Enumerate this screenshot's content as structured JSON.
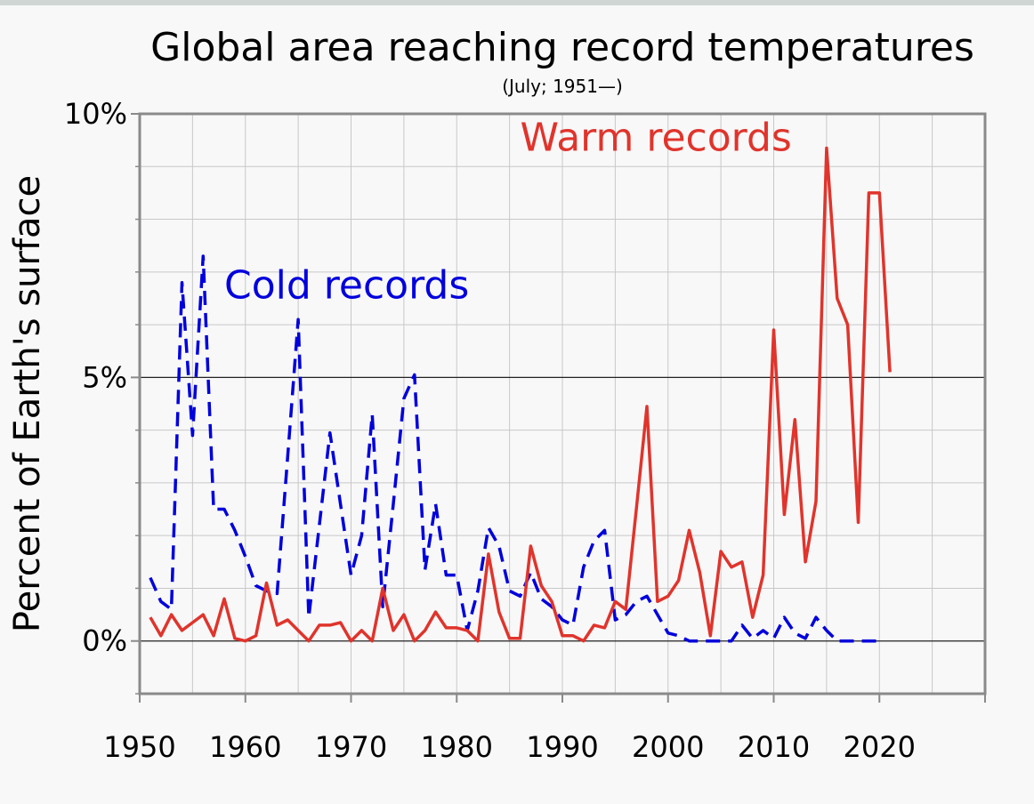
{
  "chart_data": {
    "type": "line",
    "title": "Global area reaching record temperatures",
    "subtitle": "(July; 1951—)",
    "ylabel": "Percent of Earth's surface",
    "xlabel": "",
    "xlim": [
      1950,
      2030
    ],
    "ylim": [
      -1,
      10
    ],
    "x_ticks": [
      1950,
      1960,
      1970,
      1980,
      1990,
      2000,
      2010,
      2020
    ],
    "x_tick_labels": [
      "1950",
      "1960",
      "1970",
      "1980",
      "1990",
      "2000",
      "2010",
      "2020"
    ],
    "y_ticks": [
      0,
      5,
      10
    ],
    "y_tick_labels": [
      "0%",
      "5%",
      "10%"
    ],
    "grid": true,
    "series": [
      {
        "name": "Cold records",
        "color": "#0000dd",
        "style": "dashed",
        "x": [
          1951,
          1952,
          1953,
          1954,
          1955,
          1956,
          1957,
          1958,
          1959,
          1960,
          1961,
          1962,
          1963,
          1964,
          1965,
          1966,
          1967,
          1968,
          1969,
          1970,
          1971,
          1972,
          1973,
          1974,
          1975,
          1976,
          1977,
          1978,
          1979,
          1980,
          1981,
          1982,
          1983,
          1984,
          1985,
          1986,
          1987,
          1988,
          1989,
          1990,
          1991,
          1992,
          1993,
          1994,
          1995,
          1996,
          1997,
          1998,
          1999,
          2000,
          2001,
          2002,
          2003,
          2004,
          2005,
          2006,
          2007,
          2008,
          2009,
          2010,
          2011,
          2012,
          2013,
          2014,
          2015,
          2016,
          2017,
          2018,
          2019,
          2020
        ],
        "values": [
          1.2,
          0.75,
          0.6,
          6.8,
          3.9,
          7.3,
          2.5,
          2.5,
          2.1,
          1.6,
          1.05,
          0.95,
          0.9,
          3.5,
          6.1,
          0.45,
          2.2,
          3.95,
          2.6,
          1.25,
          2.0,
          4.3,
          0.65,
          2.6,
          4.6,
          5.05,
          1.35,
          2.6,
          1.25,
          1.25,
          0.2,
          0.95,
          2.15,
          1.8,
          0.95,
          0.85,
          1.3,
          0.8,
          0.65,
          0.4,
          0.3,
          1.4,
          1.9,
          2.1,
          0.4,
          0.5,
          0.75,
          0.85,
          0.5,
          0.15,
          0.1,
          0.0,
          0.0,
          0.0,
          0.0,
          0.0,
          0.3,
          0.05,
          0.2,
          0.05,
          0.45,
          0.15,
          0.05,
          0.45,
          0.2,
          0.0,
          0.0,
          0.0,
          0.0,
          0.0
        ]
      },
      {
        "name": "Warm records",
        "color": "#e0342c",
        "style": "solid",
        "x": [
          1951,
          1952,
          1953,
          1954,
          1955,
          1956,
          1957,
          1958,
          1959,
          1960,
          1961,
          1962,
          1963,
          1964,
          1965,
          1966,
          1967,
          1968,
          1969,
          1970,
          1971,
          1972,
          1973,
          1974,
          1975,
          1976,
          1977,
          1978,
          1979,
          1980,
          1981,
          1982,
          1983,
          1984,
          1985,
          1986,
          1987,
          1988,
          1989,
          1990,
          1991,
          1992,
          1993,
          1994,
          1995,
          1996,
          1997,
          1998,
          1999,
          2000,
          2001,
          2002,
          2003,
          2004,
          2005,
          2006,
          2007,
          2008,
          2009,
          2010,
          2011,
          2012,
          2013,
          2014,
          2015,
          2016,
          2017,
          2018,
          2019,
          2020,
          2021
        ],
        "values": [
          0.45,
          0.1,
          0.5,
          0.2,
          0.35,
          0.5,
          0.1,
          0.8,
          0.05,
          0.0,
          0.1,
          1.1,
          0.3,
          0.4,
          0.2,
          0.0,
          0.3,
          0.3,
          0.35,
          0.0,
          0.2,
          0.0,
          1.0,
          0.2,
          0.5,
          0.0,
          0.2,
          0.55,
          0.25,
          0.25,
          0.2,
          0.0,
          1.65,
          0.55,
          0.05,
          0.05,
          1.8,
          1.05,
          0.75,
          0.1,
          0.1,
          0.0,
          0.3,
          0.25,
          0.75,
          0.6,
          2.5,
          4.45,
          0.75,
          0.85,
          1.15,
          2.1,
          1.3,
          0.1,
          1.7,
          1.4,
          1.5,
          0.45,
          1.25,
          5.9,
          2.4,
          4.2,
          1.5,
          2.65,
          9.35,
          6.5,
          6.0,
          2.25,
          8.5,
          8.5,
          5.1
        ]
      }
    ],
    "annotations": [
      {
        "text": "Cold records",
        "x": 1958,
        "y": 6.5,
        "color": "#0000dd"
      },
      {
        "text": "Warm records",
        "x": 1986,
        "y": 9.3,
        "color": "#e0342c"
      }
    ]
  }
}
